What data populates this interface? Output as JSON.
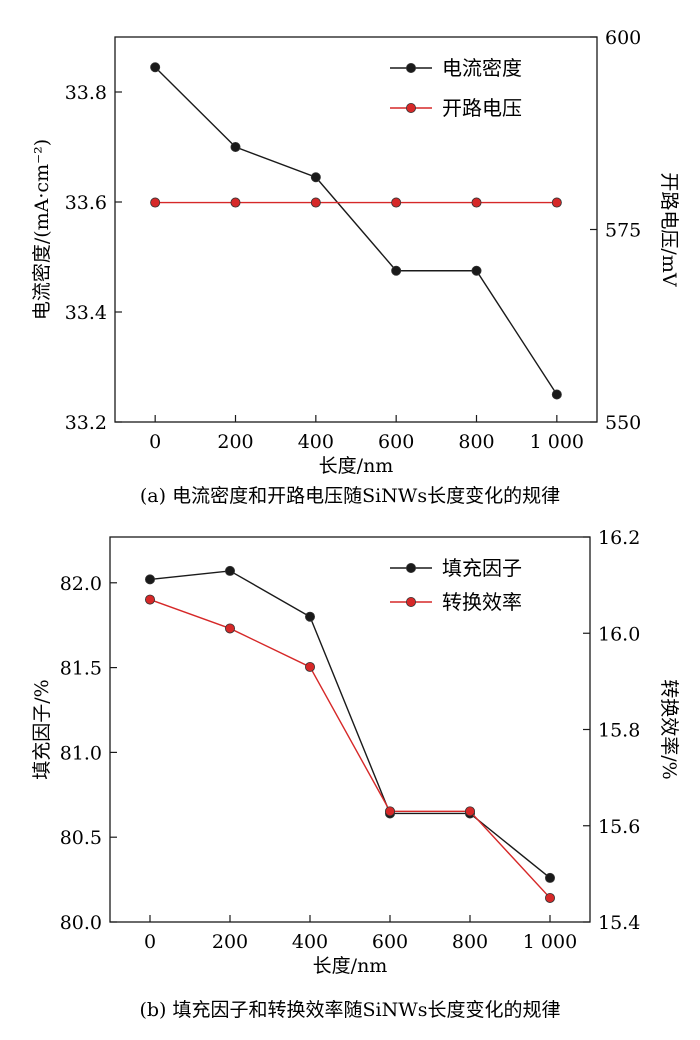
{
  "chart_data": [
    {
      "type": "line",
      "caption": "(a) 电流密度和开路电压随SiNWs长度变化的规律",
      "x": [
        0,
        200,
        400,
        600,
        800,
        1000
      ],
      "x_tick_labels": [
        "0",
        "200",
        "400",
        "600",
        "800",
        "1 000"
      ],
      "xlabel": "长度/nm",
      "xlim": [
        -100,
        1100
      ],
      "ylabel_left": "电流密度/(mA·cm⁻²)",
      "ylim_left": [
        33.2,
        33.9
      ],
      "yticks_left": [
        "33.2",
        "33.4",
        "33.6",
        "33.8"
      ],
      "ylabel_right": "开路电压/mV",
      "ylim_right": [
        550,
        600
      ],
      "yticks_right": [
        "550",
        "575",
        "600"
      ],
      "legend_position": "top-right",
      "grid": false,
      "series": [
        {
          "name": "电流密度",
          "axis": "left",
          "color": "#1a1a1a",
          "values": [
            33.845,
            33.7,
            33.645,
            33.475,
            33.475,
            33.25
          ]
        },
        {
          "name": "开路电压",
          "axis": "right",
          "color": "#d62828",
          "values": [
            578.5,
            578.5,
            578.5,
            578.5,
            578.5,
            578.5
          ]
        }
      ]
    },
    {
      "type": "line",
      "caption": "(b) 填充因子和转换效率随SiNWs长度变化的规律",
      "x": [
        0,
        200,
        400,
        600,
        800,
        1000
      ],
      "x_tick_labels": [
        "0",
        "200",
        "400",
        "600",
        "800",
        "1 000"
      ],
      "xlabel": "长度/nm",
      "xlim": [
        -100,
        1100
      ],
      "ylabel_left": "填充因子/%",
      "ylim_left": [
        80.0,
        82.27
      ],
      "yticks_left": [
        "80.0",
        "80.5",
        "81.0",
        "81.5",
        "82.0"
      ],
      "ylabel_right": "转换效率/%",
      "ylim_right": [
        15.4,
        16.2
      ],
      "yticks_right": [
        "15.4",
        "15.6",
        "15.8",
        "16.0",
        "16.2"
      ],
      "legend_position": "top-right",
      "grid": false,
      "series": [
        {
          "name": "填充因子",
          "axis": "left",
          "color": "#1a1a1a",
          "values": [
            82.02,
            82.07,
            81.8,
            80.64,
            80.64,
            80.26
          ]
        },
        {
          "name": "转换效率",
          "axis": "right",
          "color": "#d62828",
          "values": [
            16.07,
            16.01,
            15.93,
            15.63,
            15.63,
            15.45
          ]
        }
      ]
    }
  ]
}
